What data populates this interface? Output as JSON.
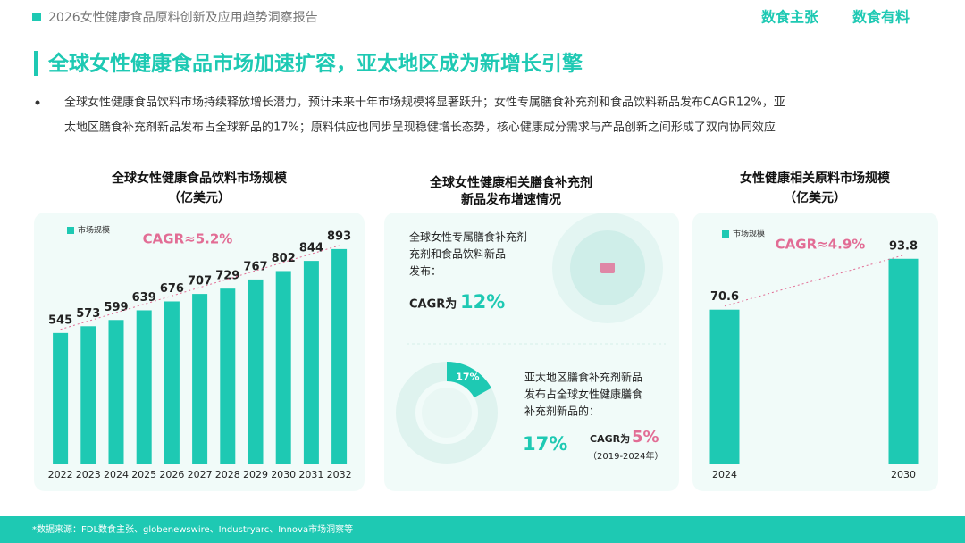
{
  "header": {
    "report_title": "2026女性健康食品原料创新及应用趋势洞察报告",
    "logo1": "数食主张",
    "logo2": "数食有料"
  },
  "headline": "全球女性健康食品市场加速扩容，亚太地区成为新增长引擎",
  "bullet_lines": [
    "全球女性健康食品饮料市场持续释放增长潜力，预计未来十年市场规模将显著跃升；女性专属膳食补充剂和食品饮料新品发布CAGR12%，亚",
    "太地区膳食补充剂新品发布占全球新品的17%；原料供应也同步呈现稳健增长态势，核心健康成分需求与产品创新之间形成了双向协同效应"
  ],
  "chart_data": [
    {
      "type": "bar",
      "title": "全球女性健康食品饮料市场规模",
      "subtitle": "（亿美元）",
      "annotation": "CAGR≈5.2%",
      "categories": [
        "2022",
        "2023",
        "2024",
        "2025",
        "2026",
        "2027",
        "2028",
        "2029",
        "2030",
        "2031",
        "2032"
      ],
      "series": [
        {
          "name": "市场规模",
          "color": "#1ec9b3",
          "values": [
            545,
            573,
            599,
            639,
            676,
            707,
            729,
            767,
            802,
            844,
            893
          ]
        }
      ],
      "ylim": [
        0,
        1000
      ]
    },
    {
      "type": "bar",
      "title": "女性健康相关原料市场规模",
      "subtitle": "（亿美元）",
      "annotation": "CAGR≈4.9%",
      "categories": [
        "2024",
        "2030"
      ],
      "series": [
        {
          "name": "市场规模",
          "color": "#1ec9b3",
          "values": [
            70.6,
            93.8
          ]
        }
      ],
      "ylim": [
        0,
        110
      ]
    }
  ],
  "middle_panel": {
    "title_lines": [
      "全球女性健康相关膳食补充剂",
      "新品发布增速情况"
    ],
    "stat1_lines": [
      "全球女性专属膳食补充剂",
      "充剂和食品饮料新品",
      "发布："
    ],
    "stat1_prefix": "CAGR为",
    "stat1_value": "12%",
    "stat2_lines": [
      "亚太地区膳食补充剂新品",
      "发布占全球女性健康膳食",
      "补充剂新品的："
    ],
    "stat2_value": "17%",
    "stat2_cagr_prefix": "CAGR为",
    "stat2_cagr_value": "5%",
    "stat2_period": "（2019-2024年）",
    "donut": {
      "value": 17,
      "label": "17%"
    }
  },
  "footer": "*数据来源：FDL数食主张、globenewswire、Industryarc、Innova市场洞察等"
}
